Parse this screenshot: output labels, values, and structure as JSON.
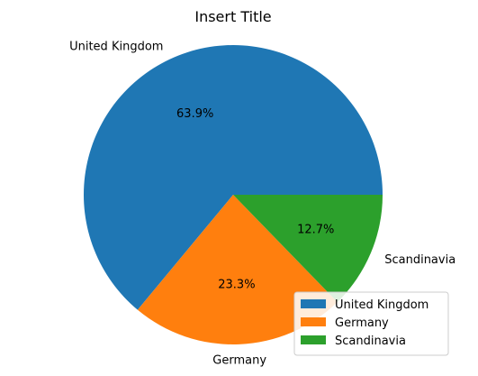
{
  "chart_data": {
    "type": "pie",
    "title": "Insert Title",
    "categories": [
      "United Kingdom",
      "Germany",
      "Scandinavia"
    ],
    "values": [
      63.9,
      23.3,
      12.7
    ],
    "percent_labels": [
      "63.9%",
      "23.3%",
      "12.7%"
    ],
    "colors": [
      "#1f77b4",
      "#ff7f0e",
      "#2ca02c"
    ],
    "legend": {
      "placement": "lower-right",
      "entries": [
        "United Kingdom",
        "Germany",
        "Scandinavia"
      ]
    },
    "start_angle_deg": 0,
    "direction": "counterclockwise"
  }
}
